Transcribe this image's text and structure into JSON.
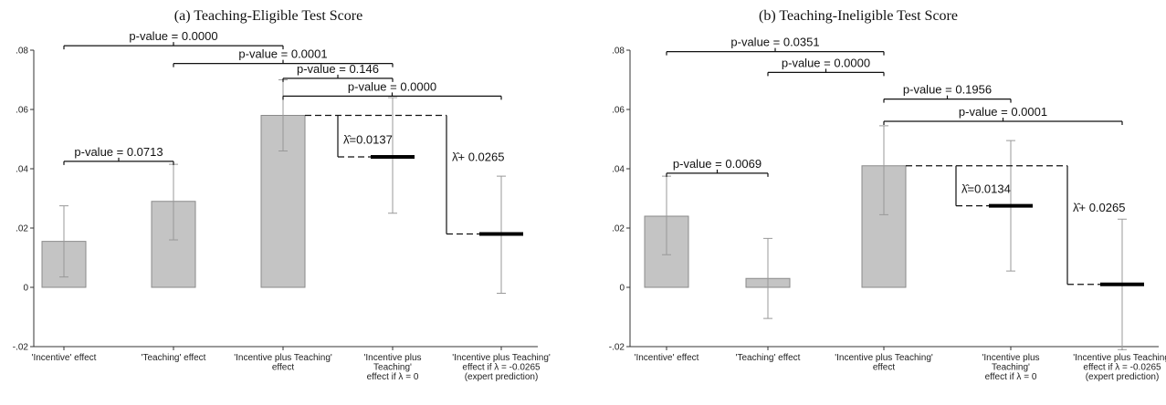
{
  "chart_data": [
    {
      "type": "bar",
      "title": "(a) Teaching-Eligible Test Score",
      "ylim": [
        -0.02,
        0.08
      ],
      "yticks": [
        -0.02,
        0,
        0.02,
        0.04,
        0.06,
        0.08
      ],
      "ytick_labels": [
        "-.02",
        "0",
        ".02",
        ".04",
        ".06",
        ".08"
      ],
      "grid": false,
      "categories": [
        [
          "'Incentive' effect"
        ],
        [
          "'Teaching' effect"
        ],
        [
          "'Incentive plus Teaching'",
          "effect"
        ],
        [
          "'Incentive plus",
          "Teaching'",
          "effect if  λ = 0"
        ],
        [
          "'Incentive plus Teaching'",
          "effect if  λ = -0.0265",
          "(expert prediction)"
        ]
      ],
      "bars": [
        {
          "value": 0.0155,
          "ci": [
            0.0035,
            0.0275
          ]
        },
        {
          "value": 0.029,
          "ci": [
            0.016,
            0.0415
          ]
        },
        {
          "value": 0.058,
          "ci": [
            0.046,
            0.07
          ]
        }
      ],
      "predictions": [
        {
          "value": 0.044,
          "ci": [
            0.025,
            0.064
          ]
        },
        {
          "value": 0.018,
          "ci": [
            -0.002,
            0.0375
          ]
        }
      ],
      "pvalue_brackets": [
        {
          "from": 0,
          "to": 2,
          "y": 0.0815,
          "label": "p-value = 0.0000"
        },
        {
          "from": 1,
          "to": 3,
          "y": 0.0755,
          "label": "p-value = 0.0001"
        },
        {
          "from": 2,
          "to": 3,
          "y": 0.0705,
          "label": "p-value = 0.146"
        },
        {
          "from": 2,
          "to": 4,
          "y": 0.0645,
          "label": "p-value = 0.0000"
        },
        {
          "from": 0,
          "to": 1,
          "y": 0.0425,
          "label": "p-value = 0.0713"
        }
      ],
      "annotations": [
        {
          "text": "λ̂=0.0137",
          "pred": 0
        },
        {
          "text": "λ̂+ 0.0265",
          "pred": 1
        }
      ]
    },
    {
      "type": "bar",
      "title": "(b) Teaching-Ineligible Test Score",
      "ylim": [
        -0.02,
        0.08
      ],
      "yticks": [
        -0.02,
        0,
        0.02,
        0.04,
        0.06,
        0.08
      ],
      "ytick_labels": [
        "-.02",
        "0",
        ".02",
        ".04",
        ".06",
        ".08"
      ],
      "grid": false,
      "categories": [
        [
          "'Incentive' effect"
        ],
        [
          "'Teaching' effect"
        ],
        [
          "'Incentive plus Teaching'",
          "effect"
        ],
        [
          "'Incentive plus",
          "Teaching'",
          "effect if  λ = 0"
        ],
        [
          "'Incentive plus Teaching'",
          "effect if  λ = -0.0265",
          "(expert prediction)"
        ]
      ],
      "bars": [
        {
          "value": 0.024,
          "ci": [
            0.011,
            0.0375
          ]
        },
        {
          "value": 0.003,
          "ci": [
            -0.0105,
            0.0165
          ]
        },
        {
          "value": 0.041,
          "ci": [
            0.0245,
            0.0545
          ]
        }
      ],
      "predictions": [
        {
          "value": 0.0275,
          "ci": [
            0.0055,
            0.0495
          ]
        },
        {
          "value": 0.001,
          "ci": [
            -0.021,
            0.023
          ]
        }
      ],
      "pvalue_brackets": [
        {
          "from": 0,
          "to": 2,
          "y": 0.0795,
          "label": "p-value = 0.0351"
        },
        {
          "from": 1,
          "to": 2,
          "y": 0.0725,
          "label": "p-value = 0.0000"
        },
        {
          "from": 2,
          "to": 3,
          "y": 0.0635,
          "label": "p-value = 0.1956"
        },
        {
          "from": 2,
          "to": 4,
          "y": 0.056,
          "label": "p-value = 0.0001"
        },
        {
          "from": 0,
          "to": 1,
          "y": 0.0385,
          "label": "p-value = 0.0069"
        }
      ],
      "annotations": [
        {
          "text": "λ̂=0.0134",
          "pred": 0
        },
        {
          "text": "λ̂+ 0.0265",
          "pred": 1
        }
      ]
    }
  ]
}
